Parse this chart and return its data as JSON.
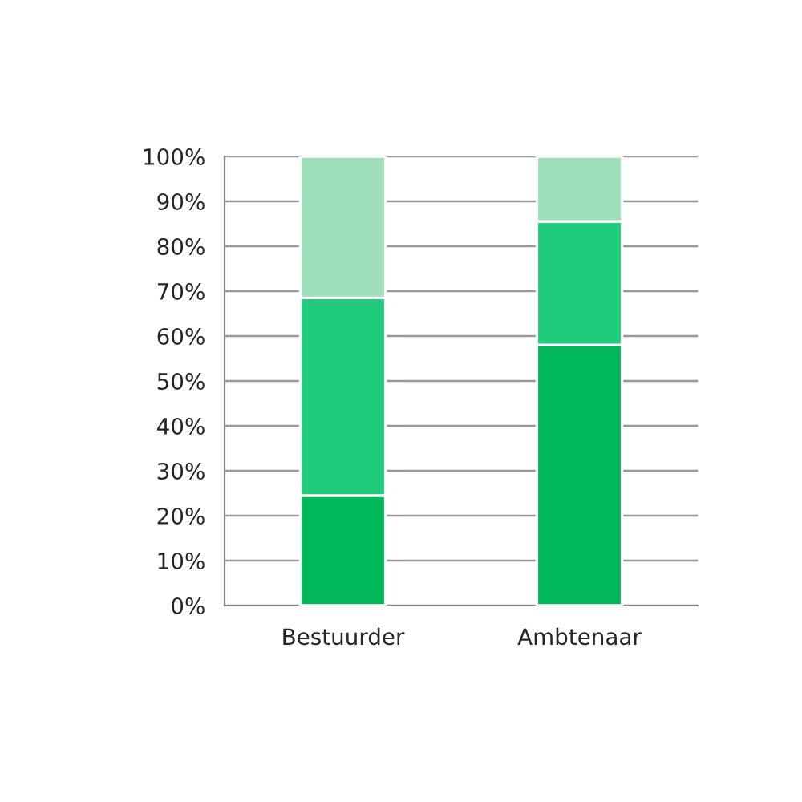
{
  "chart_data": {
    "type": "bar",
    "stacked": true,
    "categories": [
      "Bestuurder",
      "Ambtenaar"
    ],
    "series": [
      {
        "color": "#00b859",
        "values": [
          24.5,
          58
        ]
      },
      {
        "color": "#20cc7c",
        "values": [
          44,
          27.5
        ]
      },
      {
        "color": "#9edfb9",
        "values": [
          31.5,
          14.5
        ]
      }
    ],
    "ylim": [
      0,
      100
    ],
    "yticks": [
      {
        "value": 0,
        "label": "0%"
      },
      {
        "value": 10,
        "label": "10%"
      },
      {
        "value": 20,
        "label": "20%"
      },
      {
        "value": 30,
        "label": "30%"
      },
      {
        "value": 40,
        "label": "40%"
      },
      {
        "value": 50,
        "label": "50%"
      },
      {
        "value": 60,
        "label": "60%"
      },
      {
        "value": 70,
        "label": "70%"
      },
      {
        "value": 80,
        "label": "80%"
      },
      {
        "value": 90,
        "label": "90%"
      },
      {
        "value": 100,
        "label": "100%"
      }
    ],
    "grid": "y",
    "legend": false
  }
}
